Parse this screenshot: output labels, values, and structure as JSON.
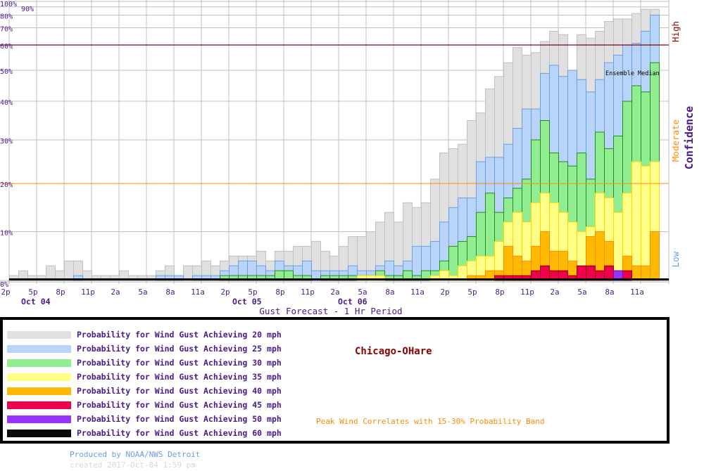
{
  "chart_data": {
    "type": "bar",
    "title": "Chicago-OHare",
    "xlabel": "Gust Forecast - 1 Hr Period",
    "ylabel": "Confidence",
    "ylim": [
      0,
      100
    ],
    "y_scale": "nonlinear (compressed toward top)",
    "grid": true,
    "y_ticks": [
      0,
      10,
      20,
      30,
      40,
      50,
      60,
      70,
      80,
      90,
      100
    ],
    "y_tick_labels": [
      "0%",
      "10%",
      "20%",
      "30%",
      "40%",
      "50%",
      "60%",
      "70%",
      "80%",
      "90%",
      "100%"
    ],
    "x_tick_labels": [
      "2p",
      "5p",
      "8p",
      "11p",
      "2a",
      "5a",
      "8a",
      "11a",
      "2p",
      "5p",
      "8p",
      "11p",
      "2a",
      "5a",
      "8a",
      "11a",
      "2p",
      "5p",
      "8p",
      "11p",
      "2a",
      "5a",
      "8a",
      "11a"
    ],
    "date_labels": [
      "Oct 04",
      "Oct 05",
      "Oct 06"
    ],
    "confidence_bands": [
      {
        "label": "High",
        "color": "#8b0000",
        "threshold": 60
      },
      {
        "label": "Moderate",
        "color": "#ff8c00",
        "threshold": 20
      },
      {
        "label": "Low",
        "color": "#6a9fe0"
      }
    ],
    "annotations": [
      "Ensemble Median"
    ],
    "categories": [
      "Oct 04 2p",
      "Oct 04 3p",
      "Oct 04 4p",
      "Oct 04 5p",
      "Oct 04 6p",
      "Oct 04 7p",
      "Oct 04 8p",
      "Oct 04 9p",
      "Oct 04 10p",
      "Oct 04 11p",
      "Oct 05 12a",
      "Oct 05 1a",
      "Oct 05 2a",
      "Oct 05 3a",
      "Oct 05 4a",
      "Oct 05 5a",
      "Oct 05 6a",
      "Oct 05 7a",
      "Oct 05 8a",
      "Oct 05 9a",
      "Oct 05 10a",
      "Oct 05 11a",
      "Oct 05 12p",
      "Oct 05 1p",
      "Oct 05 2p",
      "Oct 05 3p",
      "Oct 05 4p",
      "Oct 05 5p",
      "Oct 05 6p",
      "Oct 05 7p",
      "Oct 05 8p",
      "Oct 05 9p",
      "Oct 05 10p",
      "Oct 05 11p",
      "Oct 06 12a",
      "Oct 06 1a",
      "Oct 06 2a",
      "Oct 06 3a",
      "Oct 06 4a",
      "Oct 06 5a",
      "Oct 06 6a",
      "Oct 06 7a",
      "Oct 06 8a",
      "Oct 06 9a",
      "Oct 06 10a",
      "Oct 06 11a",
      "Oct 06 12p",
      "Oct 06 1p",
      "Oct 06 2p",
      "Oct 06 3p",
      "Oct 06 4p",
      "Oct 06 5p",
      "Oct 06 6p",
      "Oct 06 7p",
      "Oct 06 8p",
      "Oct 06 9p",
      "Oct 06 10p",
      "Oct 06 11p",
      "Oct 07 12a",
      "Oct 07 1a",
      "Oct 07 2a",
      "Oct 07 3a",
      "Oct 07 4a",
      "Oct 07 5a",
      "Oct 07 6a",
      "Oct 07 7a",
      "Oct 07 8a",
      "Oct 07 9a",
      "Oct 07 10a",
      "Oct 07 11a",
      "Oct 07 12p"
    ],
    "series": [
      {
        "name": "Probability for Wind Gust Achieving 20 mph",
        "color": "#e0e0e0",
        "stroke": "#c0c0c0",
        "values": [
          1,
          2,
          1,
          1,
          3,
          2,
          4,
          4,
          2,
          1,
          1,
          1,
          2,
          1,
          1,
          1,
          2,
          3,
          1,
          3,
          3,
          4,
          3,
          4,
          5,
          5,
          5,
          6,
          4,
          6,
          6,
          7,
          7,
          8,
          6,
          5,
          7,
          9,
          9,
          10,
          12,
          14,
          12,
          16,
          15,
          16,
          21,
          27,
          28,
          29,
          35,
          37,
          44,
          48,
          53,
          59,
          56,
          57,
          62,
          68,
          66,
          50,
          66,
          64,
          68,
          75,
          77,
          77,
          82,
          87,
          87
        ]
      },
      {
        "name": "Probability for Wind Gust Achieving 25 mph",
        "color": "#b8d4f8",
        "stroke": "#6a9fe0",
        "values": [
          0,
          0,
          0,
          0,
          0,
          0,
          0,
          1,
          0,
          0,
          0,
          0,
          0,
          0,
          0,
          0,
          1,
          1,
          1,
          0,
          1,
          1,
          1,
          2,
          3,
          4,
          4,
          3,
          2,
          4,
          3,
          3,
          4,
          2,
          2,
          2,
          2,
          3,
          2,
          2,
          3,
          4,
          3,
          4,
          7,
          7,
          8,
          12,
          15,
          17,
          17,
          25,
          26,
          26,
          29,
          33,
          38,
          38,
          49,
          52,
          48,
          50,
          47,
          43,
          47,
          53,
          56,
          60,
          61,
          68,
          80
        ]
      },
      {
        "name": "Probability for Wind Gust Achieving 30 mph",
        "color": "#90ee90",
        "stroke": "#228b22",
        "values": [
          0,
          0,
          0,
          0,
          0,
          0,
          0,
          0,
          0,
          0,
          0,
          0,
          0,
          0,
          0,
          0,
          0,
          0,
          0,
          0,
          0,
          0,
          0,
          1,
          1,
          1,
          1,
          1,
          1,
          2,
          2,
          1,
          1,
          0,
          1,
          1,
          1,
          1,
          1,
          1,
          2,
          1,
          1,
          2,
          1,
          2,
          2,
          4,
          7,
          8,
          9,
          14,
          18,
          14,
          17,
          19,
          21,
          30,
          35,
          27,
          25,
          24,
          27,
          21,
          32,
          28,
          31,
          40,
          45,
          43,
          53
        ]
      },
      {
        "name": "Probability for Wind Gust Achieving 35 mph",
        "color": "#ffff88",
        "stroke": "#ffd700",
        "values": [
          0,
          0,
          0,
          0,
          0,
          0,
          0,
          0,
          0,
          0,
          0,
          0,
          0,
          0,
          0,
          0,
          0,
          0,
          0,
          0,
          0,
          0,
          0,
          0,
          0,
          0,
          0,
          0,
          0,
          0,
          0,
          0,
          0,
          0,
          0,
          0,
          0,
          0,
          1,
          1,
          1,
          0,
          0,
          0,
          0,
          0,
          1,
          2,
          1,
          3,
          4,
          5,
          5,
          8,
          12,
          14,
          12,
          16,
          18,
          16,
          14,
          12,
          10,
          11,
          18,
          17,
          14,
          18,
          25,
          24,
          25
        ]
      },
      {
        "name": "Probability for Wind Gust Achieving 40 mph",
        "color": "#ffb900",
        "stroke": "#ff8c00",
        "values": [
          0,
          0,
          0,
          0,
          0,
          0,
          0,
          0,
          0,
          0,
          0,
          0,
          0,
          0,
          0,
          0,
          0,
          0,
          0,
          0,
          0,
          0,
          0,
          0,
          0,
          0,
          0,
          0,
          0,
          0,
          0,
          0,
          0,
          0,
          0,
          0,
          0,
          0,
          0,
          0,
          0,
          0,
          0,
          0,
          0,
          0,
          0,
          0,
          0,
          0,
          1,
          1,
          2,
          2,
          7,
          5,
          4,
          7,
          10,
          6,
          6,
          4,
          3,
          9,
          10,
          8,
          2,
          5,
          3,
          3,
          10
        ]
      },
      {
        "name": "Probability for Wind Gust Achieving 45 mph",
        "color": "#f0004c",
        "stroke": "#8b0000",
        "values": [
          0,
          0,
          0,
          0,
          0,
          0,
          0,
          0,
          0,
          0,
          0,
          0,
          0,
          0,
          0,
          0,
          0,
          0,
          0,
          0,
          0,
          0,
          0,
          0,
          0,
          0,
          0,
          0,
          0,
          0,
          0,
          0,
          0,
          0,
          0,
          0,
          0,
          0,
          0,
          0,
          0,
          0,
          0,
          0,
          0,
          0,
          0,
          0,
          0,
          0,
          0,
          0,
          0,
          1,
          1,
          1,
          1,
          2,
          3,
          2,
          2,
          1,
          3,
          3,
          2,
          3,
          2,
          2,
          0,
          0,
          0
        ]
      },
      {
        "name": "Probability for Wind Gust Achieving 50 mph",
        "color": "#9933ff",
        "stroke": "#6a0dad",
        "values": [
          0,
          0,
          0,
          0,
          0,
          0,
          0,
          0,
          0,
          0,
          0,
          0,
          0,
          0,
          0,
          0,
          0,
          0,
          0,
          0,
          0,
          0,
          0,
          0,
          0,
          0,
          0,
          0,
          0,
          0,
          0,
          0,
          0,
          0,
          0,
          0,
          0,
          0,
          0,
          0,
          0,
          0,
          0,
          0,
          0,
          0,
          0,
          0,
          0,
          0,
          0,
          0,
          0,
          0,
          0,
          0,
          0,
          0,
          0,
          0,
          0,
          0,
          0,
          0,
          0,
          0,
          2,
          0,
          0,
          0,
          0
        ]
      },
      {
        "name": "Probability for Wind Gust Achieving 60 mph",
        "color": "#0a0a0a",
        "stroke": "#000000",
        "values": [
          0,
          0,
          0,
          0,
          0,
          0,
          0,
          0,
          0,
          0,
          0,
          0,
          0,
          0,
          0,
          0,
          0,
          0,
          0,
          0,
          0,
          0,
          0,
          0,
          0,
          0,
          0,
          0,
          0,
          0,
          0,
          0,
          0,
          0,
          0,
          0,
          0,
          0,
          0,
          0,
          0,
          0,
          0,
          0,
          0,
          0,
          0,
          0,
          0,
          0,
          0,
          0,
          0,
          0,
          0,
          0,
          0,
          0,
          0,
          0,
          0,
          0,
          0,
          0,
          0,
          0,
          0,
          0,
          0,
          0,
          0
        ]
      }
    ]
  },
  "legend": {
    "station": "Chicago-OHare",
    "note": "Peak Wind Correlates with 15-30% Probability Band"
  },
  "footer": {
    "produced": "Produced by NOAA/NWS Detroit",
    "created": "created 2017-Oct-04 1:59 pm"
  }
}
